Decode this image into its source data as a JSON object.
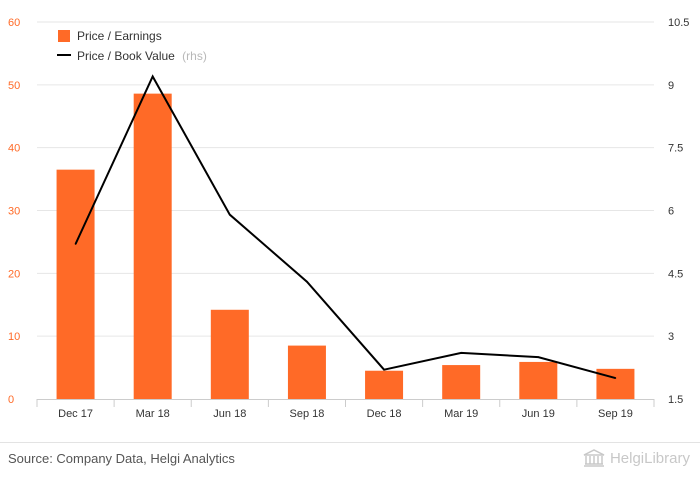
{
  "colors": {
    "bar": "#ff6a27",
    "line": "#000000",
    "left_axis_text": "#ff6a27",
    "axis_text": "#333333",
    "grid": "#e6e6e6",
    "muted": "#b8b8b8"
  },
  "footer": {
    "source": "Source: Company Data, Helgi Analytics",
    "logo_text": "HelgiLibrary",
    "logo_icon": "library-building-icon"
  },
  "chart_data": {
    "type": "bar",
    "categories": [
      "Dec 17",
      "Mar 18",
      "Jun 18",
      "Sep 18",
      "Dec 18",
      "Mar 19",
      "Jun 19",
      "Sep 19"
    ],
    "series": [
      {
        "name": "Price / Earnings",
        "type": "bar",
        "axis": "left",
        "values": [
          36.5,
          48.6,
          14.2,
          8.5,
          4.5,
          5.4,
          5.9,
          4.8
        ]
      },
      {
        "name": "Price / Book Value",
        "name_suffix": "(rhs)",
        "type": "line",
        "axis": "right",
        "values": [
          5.2,
          9.2,
          5.9,
          4.3,
          2.2,
          2.6,
          2.5,
          2.0
        ]
      }
    ],
    "y_left": {
      "min": 0,
      "max": 60,
      "ticks": [
        "0",
        "10",
        "20",
        "30",
        "40",
        "50",
        "60"
      ]
    },
    "y_right": {
      "min": 1.5,
      "max": 10.5,
      "ticks": [
        "1.5",
        "3",
        "4.5",
        "6",
        "7.5",
        "9",
        "10.5"
      ]
    },
    "grid": true,
    "legend_position": "top-left"
  }
}
